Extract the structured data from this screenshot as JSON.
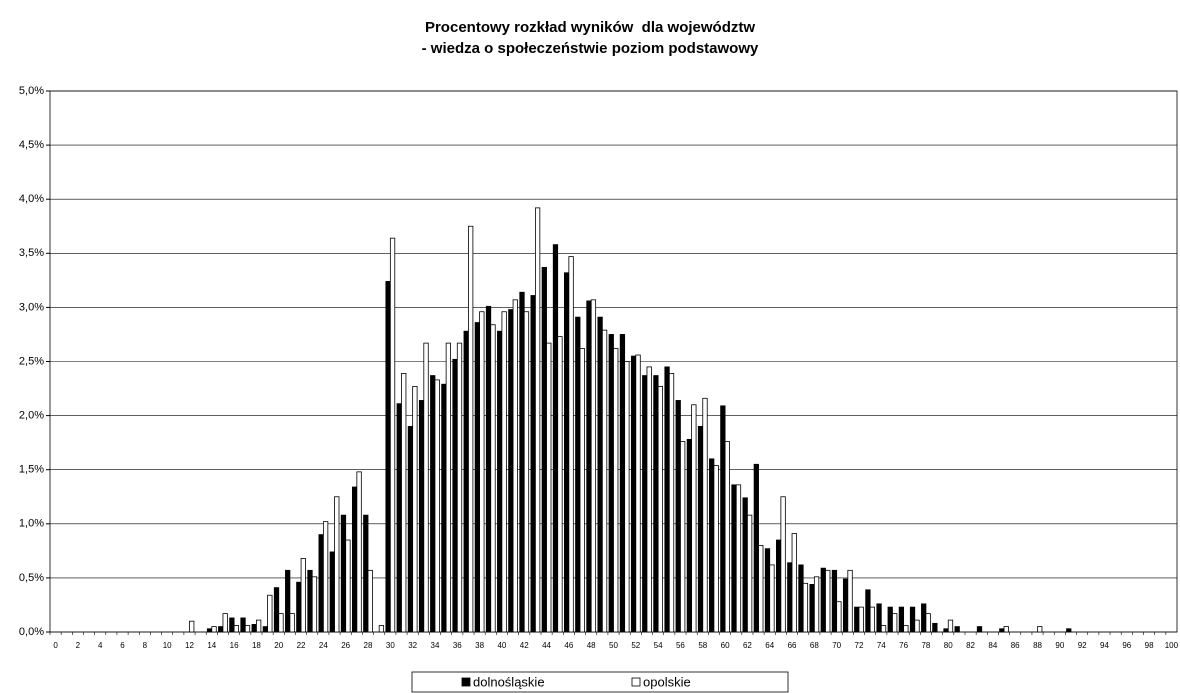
{
  "chart_data": {
    "type": "bar",
    "title": [
      "Procentowy rozkład wyników  dla województw",
      "- wiedza o społeczeństwie poziom podstawowy"
    ],
    "categories": [
      "0",
      null,
      "2",
      null,
      "4",
      null,
      "6",
      null,
      "8",
      null,
      "10",
      null,
      "12",
      null,
      "14",
      null,
      "16",
      null,
      "18",
      null,
      "20",
      null,
      "22",
      null,
      "24",
      null,
      "26",
      null,
      "28",
      null,
      "30",
      null,
      "32",
      null,
      "34",
      null,
      "36",
      null,
      "38",
      null,
      "40",
      null,
      "42",
      null,
      "44",
      null,
      "46",
      null,
      "48",
      null,
      "50",
      null,
      "52",
      null,
      "54",
      null,
      "56",
      null,
      "58",
      null,
      "60",
      null,
      "62",
      null,
      "64",
      null,
      "66",
      null,
      "68",
      null,
      "70",
      null,
      "72",
      null,
      "74",
      null,
      "76",
      null,
      "78",
      null,
      "80",
      null,
      "82",
      null,
      "84",
      null,
      "86",
      null,
      "88",
      null,
      "90",
      null,
      "92",
      null,
      "94",
      null,
      "96",
      null,
      "98",
      null,
      "100"
    ],
    "series": [
      {
        "name": "dolnośląskie",
        "color": "#000000",
        "values": [
          0,
          0,
          0,
          0,
          0,
          0,
          0,
          0,
          0,
          0,
          0,
          0,
          0,
          0,
          0.03,
          0.05,
          0.13,
          0.13,
          0.07,
          0.05,
          0.41,
          0.57,
          0.46,
          0.57,
          0.9,
          0.74,
          1.08,
          1.34,
          1.08,
          0,
          3.24,
          2.11,
          1.9,
          2.14,
          2.37,
          2.29,
          2.52,
          2.78,
          2.86,
          3.01,
          2.78,
          2.98,
          3.14,
          3.11,
          3.37,
          3.58,
          3.32,
          2.91,
          3.06,
          2.91,
          2.75,
          2.75,
          2.55,
          2.37,
          2.37,
          2.45,
          2.14,
          1.78,
          1.9,
          1.6,
          2.09,
          1.36,
          1.24,
          1.55,
          0.77,
          0.85,
          0.64,
          0.62,
          0.44,
          0.59,
          0.57,
          0.49,
          0.23,
          0.39,
          0.26,
          0.23,
          0.23,
          0.23,
          0.26,
          0.08,
          0.03,
          0.05,
          0,
          0.05,
          0,
          0.03,
          0,
          0,
          0,
          0,
          0,
          0.03,
          0,
          0,
          0,
          0,
          0,
          0,
          0,
          0,
          0
        ]
      },
      {
        "name": "opolskie",
        "color": "#ffffff",
        "values": [
          0,
          0,
          0,
          0,
          0,
          0,
          0,
          0,
          0,
          0,
          0,
          0,
          0.1,
          0,
          0.05,
          0.17,
          0.06,
          0.06,
          0.11,
          0.34,
          0.17,
          0.17,
          0.68,
          0.51,
          1.02,
          1.25,
          0.85,
          1.48,
          0.57,
          0.06,
          3.64,
          2.39,
          2.27,
          2.67,
          2.33,
          2.67,
          2.67,
          3.75,
          2.96,
          2.84,
          2.96,
          3.07,
          2.96,
          3.92,
          2.67,
          2.73,
          3.47,
          2.62,
          3.07,
          2.79,
          2.62,
          2.5,
          2.56,
          2.45,
          2.27,
          2.39,
          1.76,
          2.1,
          2.16,
          1.54,
          1.76,
          1.36,
          1.08,
          0.8,
          0.62,
          1.25,
          0.91,
          0.45,
          0.51,
          0.57,
          0.28,
          0.57,
          0.23,
          0.23,
          0.06,
          0.17,
          0.06,
          0.11,
          0.17,
          0,
          0.11,
          0,
          0,
          0,
          0,
          0.05,
          0,
          0,
          0.05,
          0,
          0,
          0,
          0,
          0,
          0,
          0,
          0,
          0,
          0,
          0,
          0
        ]
      }
    ],
    "ylim": [
      0,
      5
    ],
    "yticks": [
      {
        "value": 0,
        "label": "0,0%"
      },
      {
        "value": 0.5,
        "label": "0,5%"
      },
      {
        "value": 1,
        "label": "1,0%"
      },
      {
        "value": 1.5,
        "label": "1,5%"
      },
      {
        "value": 2,
        "label": "2,0%"
      },
      {
        "value": 2.5,
        "label": "2,5%"
      },
      {
        "value": 3,
        "label": "3,0%"
      },
      {
        "value": 3.5,
        "label": "3,5%"
      },
      {
        "value": 4,
        "label": "4,0%"
      },
      {
        "value": 4.5,
        "label": "4,5%"
      },
      {
        "value": 5,
        "label": "5,0%"
      }
    ],
    "grid": true,
    "legend": "bottom"
  }
}
